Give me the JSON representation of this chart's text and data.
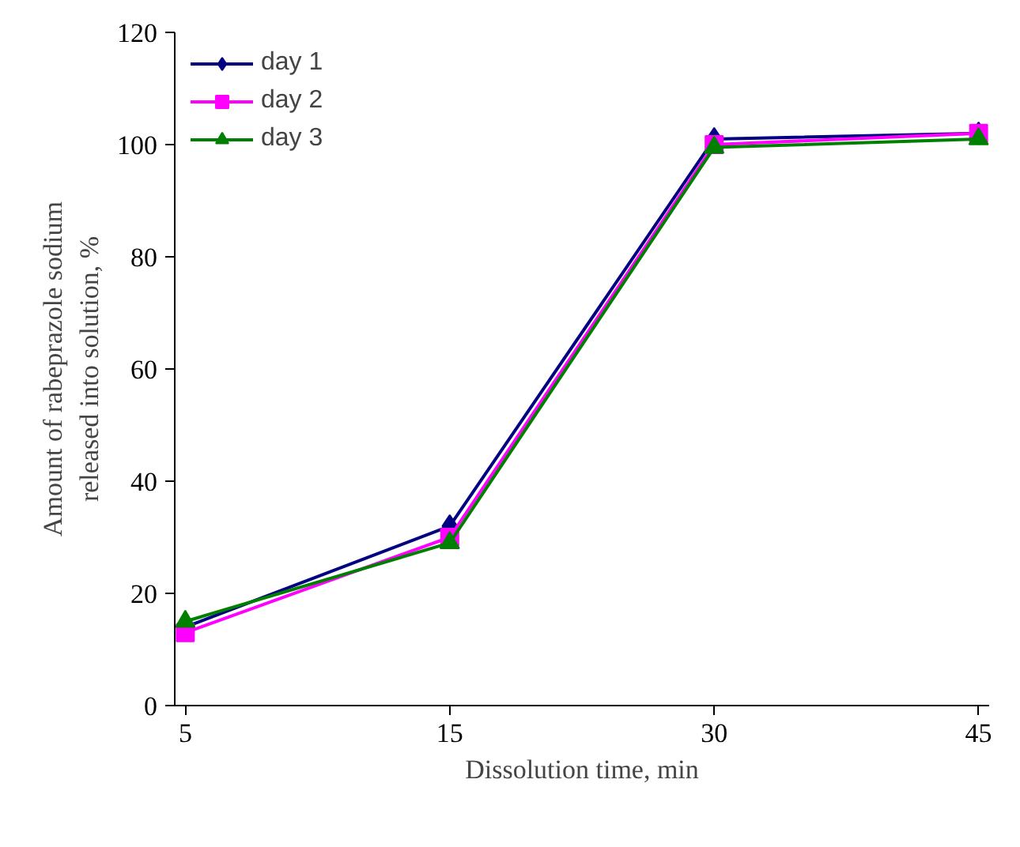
{
  "chart_data": {
    "type": "line",
    "xlabel": "Dissolution time, min",
    "ylabel": "Amount of rabeprazole sodium\nreleased into solution, %",
    "categories": [
      "5",
      "15",
      "30",
      "45"
    ],
    "series": [
      {
        "name": "day 1",
        "color": "#000080",
        "marker": "diamond",
        "values": [
          14,
          32,
          101,
          102
        ]
      },
      {
        "name": "day 2",
        "color": "#ff00ff",
        "marker": "square",
        "values": [
          13,
          30,
          100,
          102
        ]
      },
      {
        "name": "day 3",
        "color": "#008000",
        "marker": "triangle",
        "values": [
          15,
          29,
          99.5,
          101
        ]
      }
    ],
    "ylim": [
      0,
      120
    ],
    "yticks": [
      0,
      20,
      40,
      60,
      80,
      100,
      120
    ],
    "grid": false,
    "legend": "top left",
    "line_style": "solid"
  }
}
